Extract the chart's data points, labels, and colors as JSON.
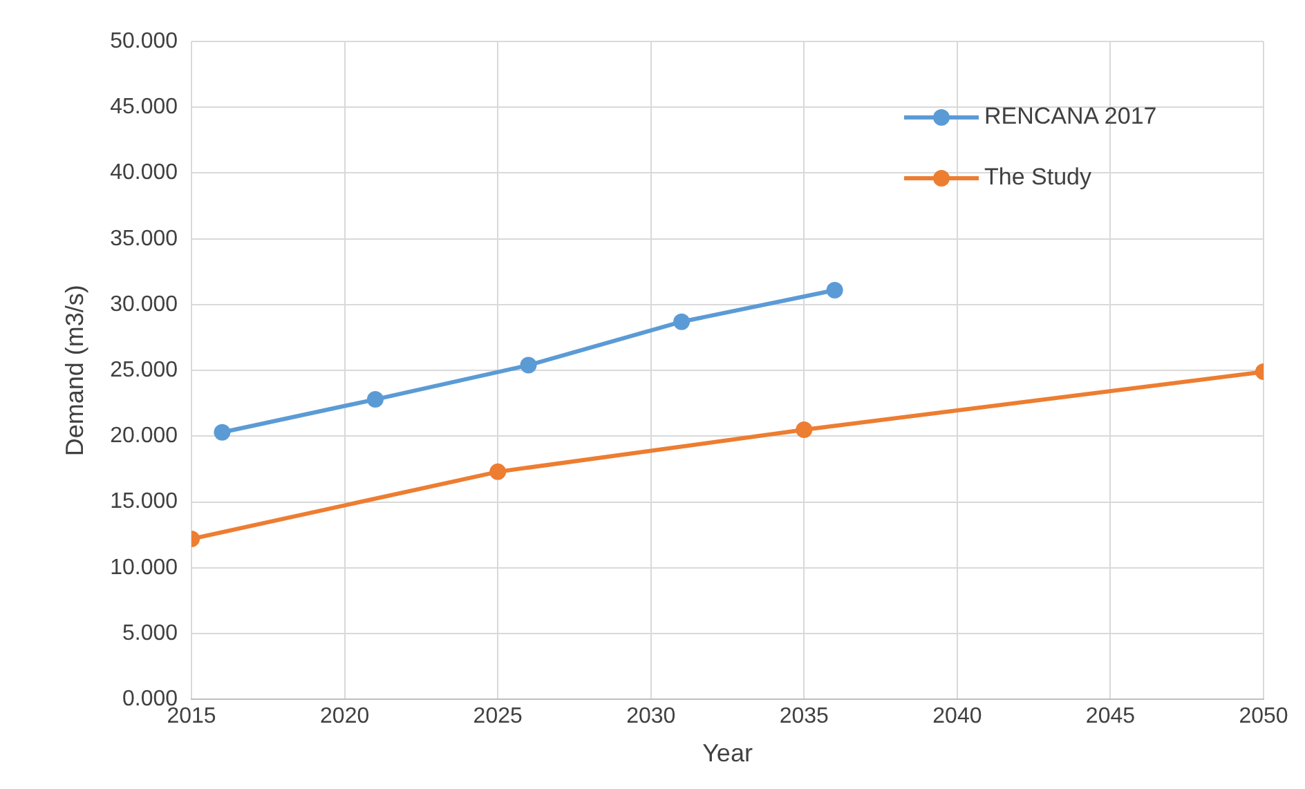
{
  "chart_data": {
    "type": "line",
    "xlabel": "Year",
    "ylabel": "Demand (m3/s)",
    "xlim": [
      2015,
      2050
    ],
    "xticks": [
      2015,
      2020,
      2025,
      2030,
      2035,
      2040,
      2045,
      2050
    ],
    "ylim": [
      0,
      50
    ],
    "yticks": [
      {
        "value": 0,
        "label": "0.000"
      },
      {
        "value": 5,
        "label": "5.000"
      },
      {
        "value": 10,
        "label": "10.000"
      },
      {
        "value": 15,
        "label": "15.000"
      },
      {
        "value": 20,
        "label": "20.000"
      },
      {
        "value": 25,
        "label": "25.000"
      },
      {
        "value": 30,
        "label": "30.000"
      },
      {
        "value": 35,
        "label": "35.000"
      },
      {
        "value": 40,
        "label": "40.000"
      },
      {
        "value": 45,
        "label": "45.000"
      },
      {
        "value": 50,
        "label": "50.000"
      }
    ],
    "grid": true,
    "legend": "top right",
    "marker": "circle",
    "line_style": "solid",
    "series": [
      {
        "name": "RENCANA 2017",
        "color": "#5b9bd5",
        "x": [
          2016,
          2021,
          2026,
          2031,
          2036
        ],
        "values": [
          20.3,
          22.8,
          25.4,
          28.7,
          31.1
        ]
      },
      {
        "name": "The Study",
        "color": "#ed7d31",
        "x": [
          2015,
          2025,
          2035,
          2050
        ],
        "values": [
          12.2,
          17.3,
          20.5,
          24.9
        ]
      }
    ]
  }
}
